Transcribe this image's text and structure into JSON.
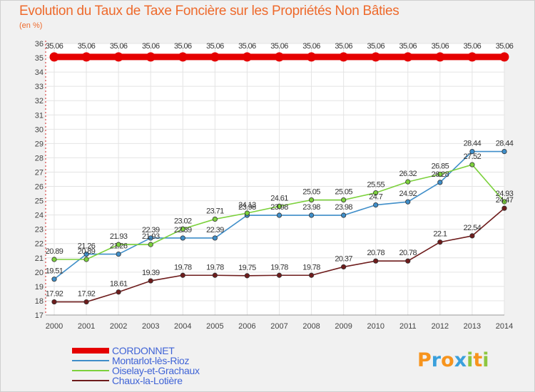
{
  "title": "Evolution du Taux de Taxe Foncière sur les Propriétés Non Bâties",
  "unit_label": "(en %)",
  "logo": {
    "letters": [
      "P",
      "r",
      "o",
      "x",
      "i",
      "t",
      "i"
    ],
    "colors": [
      "#f7941d",
      "#3aa0dc",
      "#f7941d",
      "#3aa0dc",
      "#8dc63f",
      "#f7941d",
      "#8dc63f"
    ]
  },
  "chart_data": {
    "type": "line",
    "title": "Evolution du Taux de Taxe Foncière sur les Propriétés Non Bâties",
    "ylabel": "(en %)",
    "xlabel": "",
    "ylim": [
      17,
      36
    ],
    "grid": true,
    "legend_position": "bottom-left",
    "x": [
      "2000",
      "2001",
      "2002",
      "2003",
      "2004",
      "2005",
      "2006",
      "2007",
      "2008",
      "2009",
      "2010",
      "2011",
      "2012",
      "2013",
      "2014"
    ],
    "yticks": [
      "17",
      "18",
      "19",
      "20",
      "21",
      "22",
      "23",
      "24",
      "25",
      "26",
      "27",
      "28",
      "29",
      "30",
      "31",
      "32",
      "33",
      "34",
      "35",
      "36"
    ],
    "series": [
      {
        "name": "CORDONNET",
        "color": "#e50000",
        "values": [
          35.06,
          35.06,
          35.06,
          35.06,
          35.06,
          35.06,
          35.06,
          35.06,
          35.06,
          35.06,
          35.06,
          35.06,
          35.06,
          35.06,
          35.06
        ],
        "labels": [
          "35.06",
          "35.06",
          "35.06",
          "35.06",
          "35.06",
          "35.06",
          "35.06",
          "35.06",
          "35.06",
          "35.06",
          "35.06",
          "35.06",
          "35.06",
          "35.06",
          "35.06"
        ]
      },
      {
        "name": "Montarlot-lès-Rioz",
        "color": "#3f8ec9",
        "values": [
          19.51,
          21.26,
          21.26,
          22.39,
          22.39,
          22.39,
          23.98,
          23.98,
          23.98,
          23.98,
          24.7,
          24.92,
          26.28,
          28.44,
          28.44
        ],
        "labels": [
          "19.51",
          "21.26",
          "21.26",
          "22.39",
          "22.39",
          "22.39",
          "23.98",
          "23.98",
          "23.98",
          "23.98",
          "24.7",
          "24.92",
          "26.28",
          "28.44",
          "28.44"
        ]
      },
      {
        "name": "Oiselay-et-Grachaux",
        "color": "#7cd13c",
        "values": [
          20.89,
          20.89,
          21.93,
          21.93,
          23.02,
          23.71,
          24.13,
          24.61,
          25.05,
          25.05,
          25.55,
          26.32,
          26.85,
          27.52,
          24.93
        ],
        "labels": [
          "20.89",
          "20.89",
          "21.93",
          "21.93",
          "23.02",
          "23.71",
          "24.13",
          "24.61",
          "25.05",
          "25.05",
          "25.55",
          "26.32",
          "26.85",
          "27.52",
          "24.93"
        ]
      },
      {
        "name": "Chaux-la-Lotière",
        "color": "#6e1c1c",
        "values": [
          17.92,
          17.92,
          18.61,
          19.39,
          19.78,
          19.78,
          19.75,
          19.78,
          19.78,
          20.37,
          20.78,
          20.78,
          22.1,
          22.54,
          24.47
        ],
        "labels": [
          "17.92",
          "17.92",
          "18.61",
          "19.39",
          "19.78",
          "19.78",
          "19.75",
          "19.78",
          "19.78",
          "20.37",
          "20.78",
          "20.78",
          "22.1",
          "22.54",
          "24.47"
        ]
      }
    ]
  }
}
